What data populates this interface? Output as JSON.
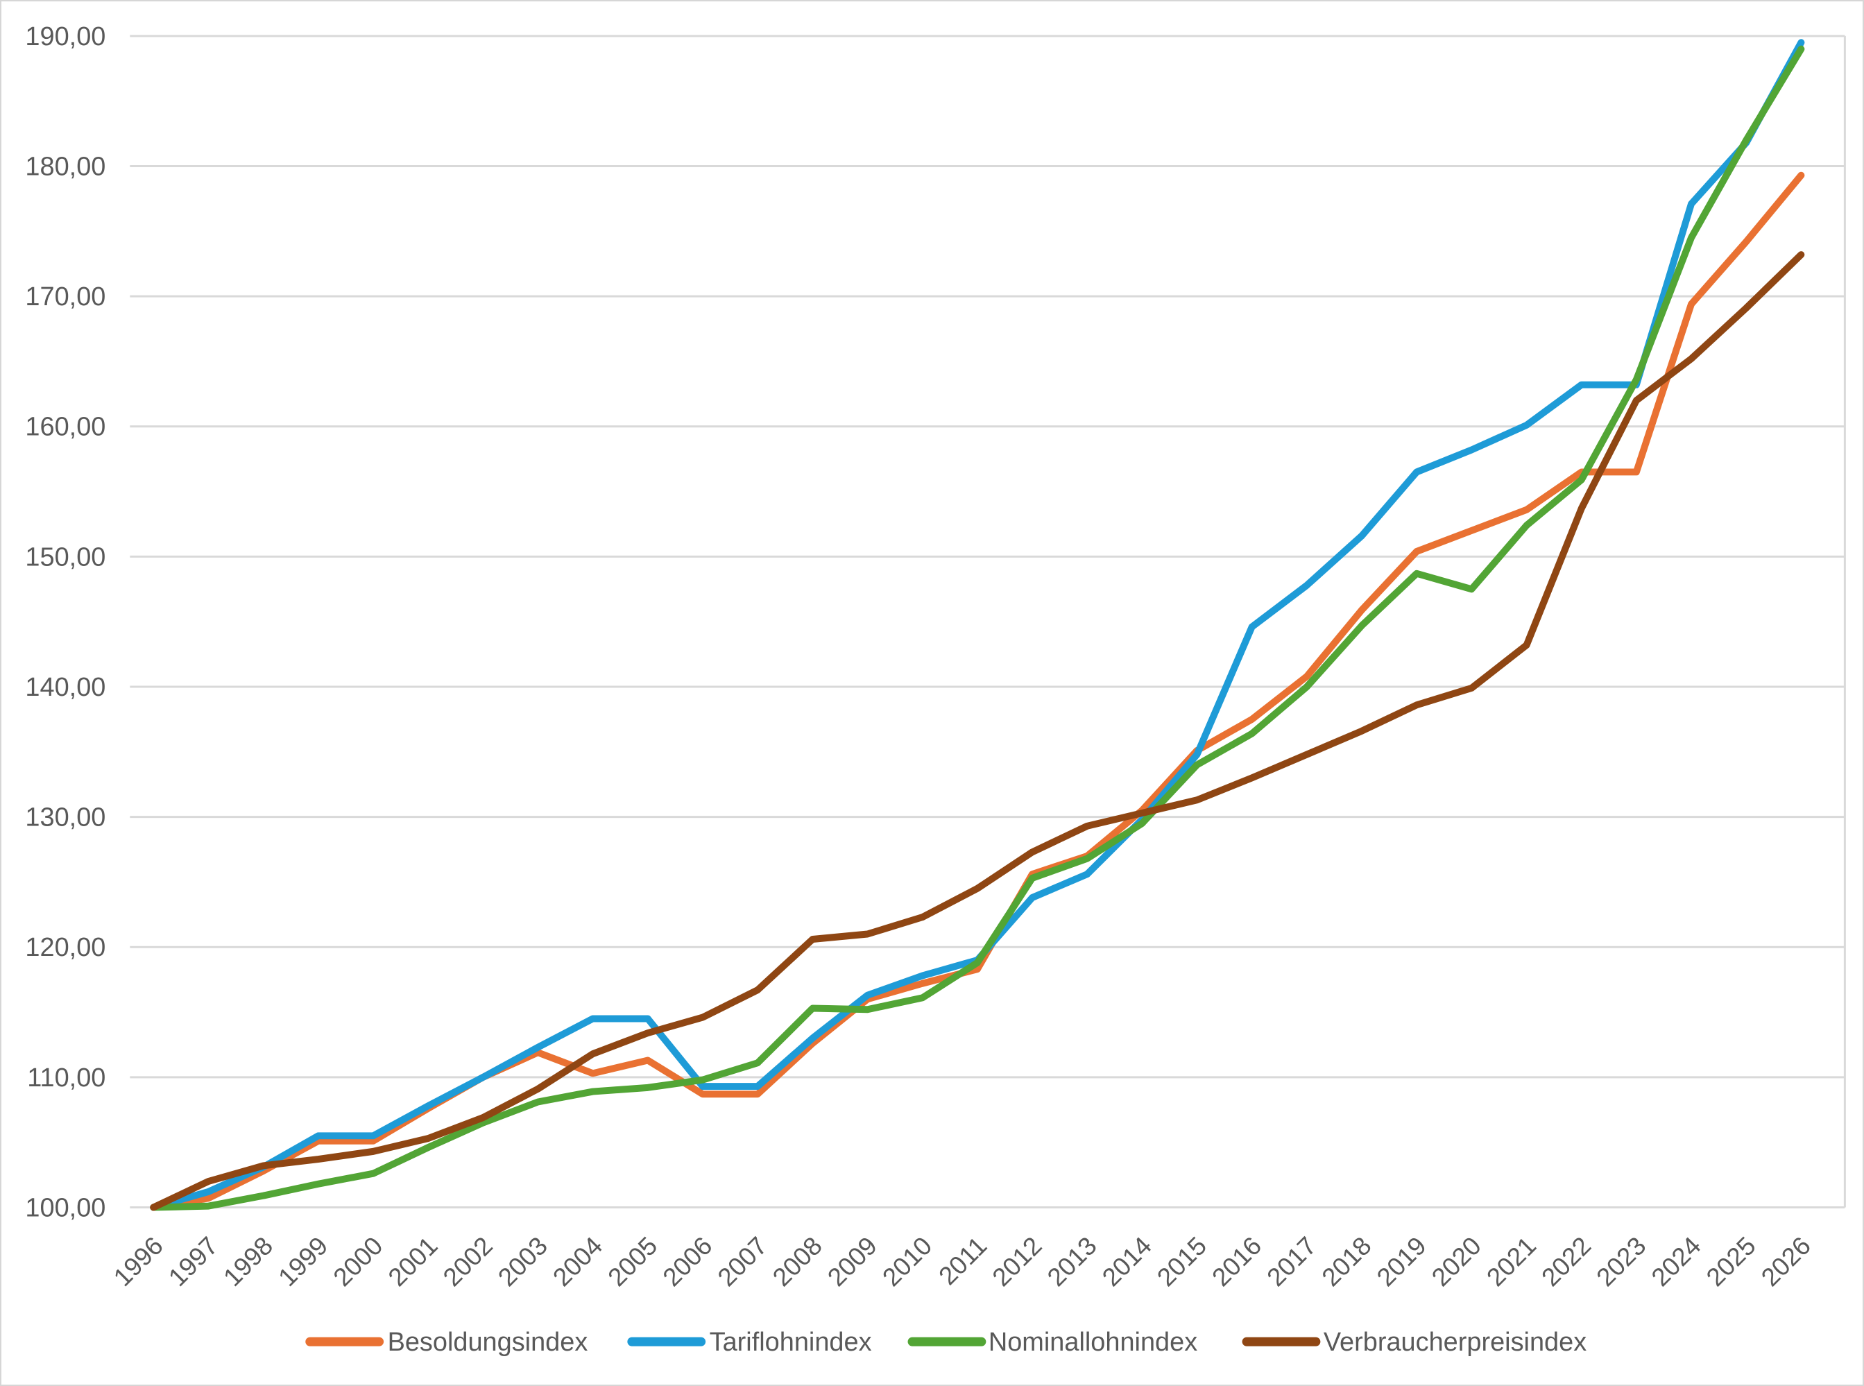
{
  "chart_data": {
    "type": "line",
    "title": "",
    "x": [
      1996,
      1997,
      1998,
      1999,
      2000,
      2001,
      2002,
      2003,
      2004,
      2005,
      2006,
      2007,
      2008,
      2009,
      2010,
      2011,
      2012,
      2013,
      2014,
      2015,
      2016,
      2017,
      2018,
      2019,
      2020,
      2021,
      2022,
      2023,
      2024,
      2025,
      2026
    ],
    "x_tick_labels": [
      "1996",
      "1997",
      "1998",
      "1999",
      "2000",
      "2001",
      "2002",
      "2003",
      "2004",
      "2005",
      "2006",
      "2007",
      "2008",
      "2009",
      "2010",
      "2011",
      "2012",
      "2013",
      "2014",
      "2015",
      "2016",
      "2017",
      "2018",
      "2019",
      "2020",
      "2021",
      "2022",
      "2023",
      "2024",
      "2025",
      "2026"
    ],
    "y_tick_labels": [
      "100,00",
      "110,00",
      "120,00",
      "130,00",
      "140,00",
      "150,00",
      "160,00",
      "170,00",
      "180,00",
      "190,00"
    ],
    "ylim": [
      100,
      190
    ],
    "ytick_step": 10,
    "grid": true,
    "legend_position": "bottom",
    "series": [
      {
        "name": "Besoldungsindex",
        "color": "#E97132",
        "values": [
          100.0,
          100.7,
          102.8,
          105.1,
          105.1,
          107.6,
          110.0,
          111.9,
          110.3,
          111.3,
          108.7,
          108.7,
          112.6,
          116.0,
          117.2,
          118.3,
          125.6,
          127.0,
          130.5,
          135.1,
          137.5,
          140.8,
          145.9,
          150.4,
          152.0,
          153.6,
          156.5,
          156.5,
          169.4,
          174.2,
          179.3
        ]
      },
      {
        "name": "Tariflohnindex",
        "color": "#1E9BD7",
        "values": [
          100.0,
          101.2,
          103.1,
          105.5,
          105.5,
          107.8,
          110.0,
          112.3,
          114.5,
          114.5,
          109.3,
          109.3,
          113.0,
          116.3,
          117.8,
          119.0,
          123.8,
          125.6,
          129.8,
          134.8,
          144.6,
          147.8,
          151.6,
          156.5,
          158.2,
          160.1,
          163.2,
          163.2,
          177.1,
          181.8,
          189.5
        ]
      },
      {
        "name": "Nominallohnindex",
        "color": "#52A535",
        "values": [
          100.0,
          100.1,
          100.9,
          101.8,
          102.6,
          104.6,
          106.5,
          108.1,
          108.9,
          109.2,
          109.8,
          111.1,
          115.3,
          115.2,
          116.1,
          118.8,
          125.3,
          126.8,
          129.5,
          134.0,
          136.4,
          140.0,
          144.7,
          148.7,
          147.5,
          152.4,
          155.9,
          163.6,
          174.5,
          182.0,
          189.0
        ]
      },
      {
        "name": "Verbraucherpreisindex",
        "color": "#8F4613",
        "values": [
          100.0,
          102.0,
          103.2,
          103.7,
          104.3,
          105.3,
          106.9,
          109.1,
          111.8,
          113.4,
          114.6,
          116.7,
          120.6,
          121.0,
          122.3,
          124.5,
          127.3,
          129.3,
          130.3,
          131.3,
          133.0,
          134.8,
          136.6,
          138.6,
          139.9,
          143.2,
          153.7,
          162.0,
          165.2,
          169.1,
          173.2
        ]
      }
    ],
    "colors": {
      "gridline": "#D9D9D9",
      "axis_label": "#595959",
      "background": "#FFFFFF"
    }
  }
}
